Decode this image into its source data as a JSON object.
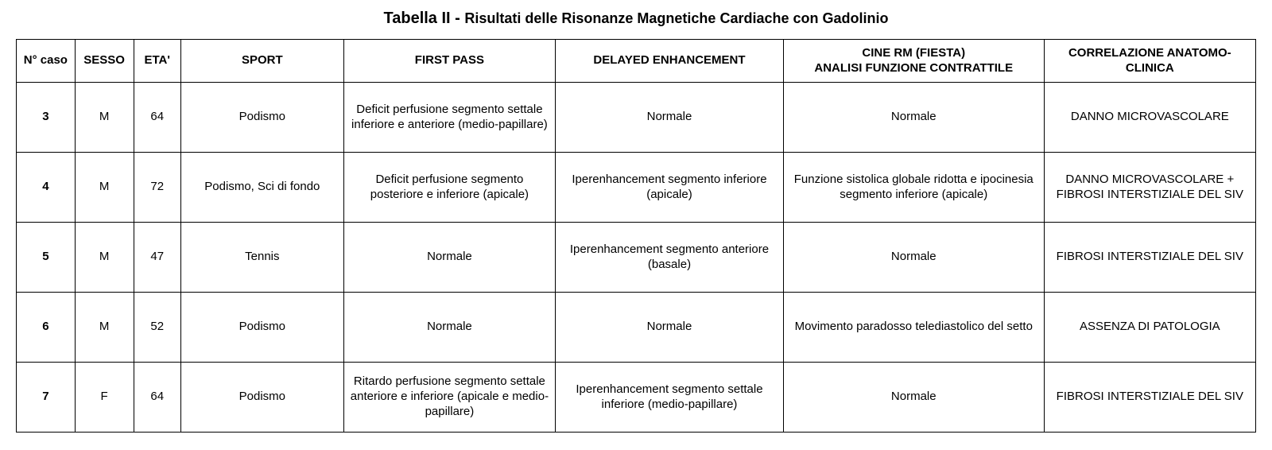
{
  "title": {
    "prefix": "Tabella II - ",
    "rest": "Risultati delle Risonanze Magnetiche Cardiache con Gadolinio"
  },
  "columns": [
    "N° caso",
    "SESSO",
    "ETA'",
    "SPORT",
    "FIRST PASS",
    "DELAYED ENHANCEMENT",
    "CINE RM (FIESTA)\nANALISI FUNZIONE CONTRATTILE",
    "CORRELAZIONE ANATOMO-CLINICA"
  ],
  "rows": [
    {
      "caso": "3",
      "sesso": "M",
      "eta": "64",
      "sport": "Podismo",
      "first": "Deficit perfusione segmento settale inferiore e anteriore (medio-papillare)",
      "delay": "Normale",
      "cine": "Normale",
      "corr": "DANNO MICROVASCOLARE"
    },
    {
      "caso": "4",
      "sesso": "M",
      "eta": "72",
      "sport": "Podismo, Sci di fondo",
      "first": "Deficit perfusione segmento posteriore e inferiore (apicale)",
      "delay": "Iperenhancement segmento inferiore (apicale)",
      "cine": "Funzione sistolica globale ridotta e ipocinesia segmento inferiore (apicale)",
      "corr": "DANNO MICROVASCOLARE + FIBROSI INTERSTIZIALE DEL SIV"
    },
    {
      "caso": "5",
      "sesso": "M",
      "eta": "47",
      "sport": "Tennis",
      "first": "Normale",
      "delay": "Iperenhancement segmento anteriore (basale)",
      "cine": "Normale",
      "corr": "FIBROSI INTERSTIZIALE DEL SIV"
    },
    {
      "caso": "6",
      "sesso": "M",
      "eta": "52",
      "sport": "Podismo",
      "first": "Normale",
      "delay": "Normale",
      "cine": "Movimento paradosso telediastolico del setto",
      "corr": "ASSENZA DI PATOLOGIA"
    },
    {
      "caso": "7",
      "sesso": "F",
      "eta": "64",
      "sport": "Podismo",
      "first": "Ritardo perfusione segmento settale anteriore e inferiore (apicale e medio-papillare)",
      "delay": "Iperenhancement segmento settale inferiore (medio-papillare)",
      "cine": "Normale",
      "corr": "FIBROSI INTERSTIZIALE DEL SIV"
    }
  ]
}
